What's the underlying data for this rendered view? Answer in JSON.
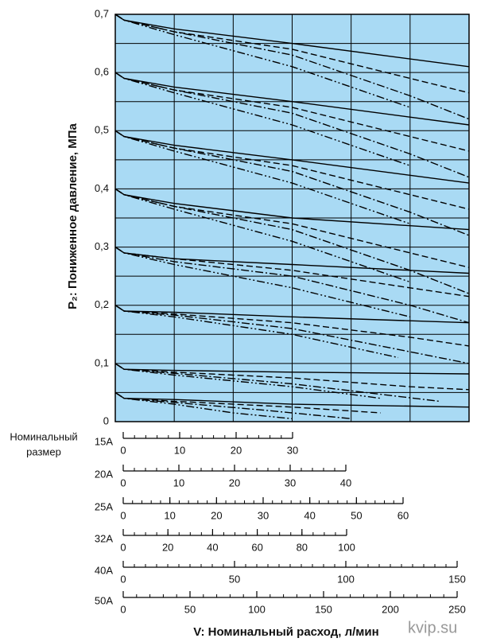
{
  "chart_data": {
    "type": "line",
    "ylabel": "P₂: Пониженное давление, МПа",
    "xlabel": "V: Номинальный расход, л/мин",
    "ylim": [
      0,
      0.7
    ],
    "yticks": [
      0,
      {
        "value": 0.1,
        "label": "0,1"
      },
      {
        "value": 0.2,
        "label": "0,2"
      },
      {
        "value": 0.3,
        "label": "0,3"
      },
      {
        "value": 0.4,
        "label": "0,4"
      },
      {
        "value": 0.5,
        "label": "0,5"
      },
      {
        "value": 0.6,
        "label": "0,6"
      },
      {
        "value": 0.7,
        "label": "0,7"
      }
    ],
    "minor_ygrid": [
      0.05,
      0.15,
      0.25,
      0.35,
      0.45,
      0.55,
      0.65
    ],
    "xlim": [
      0,
      6
    ],
    "xgrid": [
      0,
      1,
      2,
      3,
      4,
      5,
      6
    ],
    "grid": true,
    "background": "#a9daf4",
    "series": [
      {
        "color": "#000",
        "dash": "solid",
        "x": [
          0,
          0.15,
          1,
          3,
          6
        ],
        "values": [
          0.7,
          0.69,
          0.675,
          0.65,
          0.61
        ]
      },
      {
        "color": "#000",
        "dash": "dashed",
        "x": [
          0,
          0.15,
          1,
          3,
          5,
          6
        ],
        "values": [
          0.7,
          0.69,
          0.67,
          0.64,
          0.59,
          0.565
        ]
      },
      {
        "color": "#000",
        "dash": "dashdot",
        "x": [
          0,
          0.15,
          1,
          3,
          5,
          6
        ],
        "values": [
          0.7,
          0.69,
          0.67,
          0.63,
          0.56,
          0.52
        ]
      },
      {
        "color": "#000",
        "dash": "dashdotdot",
        "x": [
          0,
          0.15,
          1,
          3,
          5
        ],
        "values": [
          0.7,
          0.69,
          0.665,
          0.61,
          0.54
        ]
      },
      {
        "color": "#000",
        "dash": "solid",
        "x": [
          0,
          0.15,
          1,
          3,
          6
        ],
        "values": [
          0.6,
          0.59,
          0.575,
          0.55,
          0.51
        ]
      },
      {
        "color": "#000",
        "dash": "dashed",
        "x": [
          0,
          0.15,
          1,
          3,
          5,
          6
        ],
        "values": [
          0.6,
          0.59,
          0.57,
          0.54,
          0.49,
          0.465
        ]
      },
      {
        "color": "#000",
        "dash": "dashdot",
        "x": [
          0,
          0.15,
          1,
          3,
          5,
          6
        ],
        "values": [
          0.6,
          0.59,
          0.57,
          0.53,
          0.46,
          0.42
        ]
      },
      {
        "color": "#000",
        "dash": "dashdotdot",
        "x": [
          0,
          0.15,
          1,
          3,
          5
        ],
        "values": [
          0.6,
          0.59,
          0.565,
          0.51,
          0.44
        ]
      },
      {
        "color": "#000",
        "dash": "solid",
        "x": [
          0,
          0.15,
          1,
          3,
          6
        ],
        "values": [
          0.5,
          0.49,
          0.475,
          0.45,
          0.41
        ]
      },
      {
        "color": "#000",
        "dash": "dashed",
        "x": [
          0,
          0.15,
          1,
          3,
          5,
          6
        ],
        "values": [
          0.5,
          0.49,
          0.47,
          0.44,
          0.39,
          0.365
        ]
      },
      {
        "color": "#000",
        "dash": "dashdot",
        "x": [
          0,
          0.15,
          1,
          3,
          5,
          6
        ],
        "values": [
          0.5,
          0.49,
          0.47,
          0.43,
          0.36,
          0.32
        ]
      },
      {
        "color": "#000",
        "dash": "dashdotdot",
        "x": [
          0,
          0.15,
          1,
          3,
          5
        ],
        "values": [
          0.5,
          0.49,
          0.465,
          0.41,
          0.34
        ]
      },
      {
        "color": "#000",
        "dash": "solid",
        "x": [
          0,
          0.15,
          1,
          3,
          6
        ],
        "values": [
          0.4,
          0.39,
          0.375,
          0.35,
          0.33
        ]
      },
      {
        "color": "#000",
        "dash": "dashed",
        "x": [
          0,
          0.15,
          1,
          3,
          5,
          6
        ],
        "values": [
          0.4,
          0.39,
          0.37,
          0.34,
          0.29,
          0.265
        ]
      },
      {
        "color": "#000",
        "dash": "dashdot",
        "x": [
          0,
          0.15,
          1,
          3,
          5,
          6
        ],
        "values": [
          0.4,
          0.39,
          0.37,
          0.33,
          0.26,
          0.22
        ]
      },
      {
        "color": "#000",
        "dash": "dashdotdot",
        "x": [
          0,
          0.15,
          1,
          3,
          5
        ],
        "values": [
          0.4,
          0.39,
          0.365,
          0.31,
          0.24
        ]
      },
      {
        "color": "#000",
        "dash": "solid",
        "x": [
          0,
          0.15,
          1,
          3,
          6
        ],
        "values": [
          0.3,
          0.29,
          0.28,
          0.27,
          0.255
        ]
      },
      {
        "color": "#000",
        "dash": "dashed",
        "x": [
          0,
          0.15,
          1,
          3,
          5,
          6
        ],
        "values": [
          0.3,
          0.29,
          0.28,
          0.26,
          0.23,
          0.215
        ]
      },
      {
        "color": "#000",
        "dash": "dashdot",
        "x": [
          0,
          0.15,
          1,
          3,
          5,
          6
        ],
        "values": [
          0.3,
          0.29,
          0.275,
          0.25,
          0.2,
          0.17
        ]
      },
      {
        "color": "#000",
        "dash": "dashdotdot",
        "x": [
          0,
          0.15,
          1,
          3,
          5
        ],
        "values": [
          0.3,
          0.29,
          0.27,
          0.23,
          0.18
        ]
      },
      {
        "color": "#000",
        "dash": "solid",
        "x": [
          0,
          0.15,
          1,
          3,
          6
        ],
        "values": [
          0.2,
          0.19,
          0.188,
          0.18,
          0.17
        ]
      },
      {
        "color": "#000",
        "dash": "dashed",
        "x": [
          0,
          0.15,
          1,
          3,
          5,
          6
        ],
        "values": [
          0.2,
          0.19,
          0.185,
          0.17,
          0.145,
          0.13
        ]
      },
      {
        "color": "#000",
        "dash": "dashdot",
        "x": [
          0,
          0.15,
          1,
          3,
          5,
          6
        ],
        "values": [
          0.2,
          0.19,
          0.183,
          0.16,
          0.12,
          0.1
        ]
      },
      {
        "color": "#000",
        "dash": "dashdotdot",
        "x": [
          0,
          0.15,
          1,
          3,
          4.8
        ],
        "values": [
          0.2,
          0.19,
          0.18,
          0.15,
          0.11
        ]
      },
      {
        "color": "#000",
        "dash": "solid",
        "x": [
          0,
          0.15,
          1,
          3,
          6
        ],
        "values": [
          0.1,
          0.09,
          0.088,
          0.085,
          0.082
        ]
      },
      {
        "color": "#000",
        "dash": "dashed",
        "x": [
          0,
          0.15,
          1,
          3,
          5,
          6
        ],
        "values": [
          0.1,
          0.09,
          0.085,
          0.075,
          0.06,
          0.055
        ]
      },
      {
        "color": "#000",
        "dash": "dashdot",
        "x": [
          0,
          0.15,
          1,
          3,
          5.5
        ],
        "values": [
          0.1,
          0.09,
          0.083,
          0.065,
          0.035
        ]
      },
      {
        "color": "#000",
        "dash": "dashdotdot",
        "x": [
          0,
          0.15,
          1,
          3,
          4.5
        ],
        "values": [
          0.1,
          0.09,
          0.08,
          0.06,
          0.04
        ]
      },
      {
        "color": "#000",
        "dash": "solid",
        "x": [
          0,
          0.15,
          1,
          3,
          6
        ],
        "values": [
          0.05,
          0.04,
          0.038,
          0.03,
          0.025
        ]
      },
      {
        "color": "#000",
        "dash": "dashed",
        "x": [
          0,
          0.15,
          1,
          3,
          4.5
        ],
        "values": [
          0.05,
          0.04,
          0.035,
          0.025,
          0.015
        ]
      },
      {
        "color": "#000",
        "dash": "dashdot",
        "x": [
          0,
          0.15,
          1,
          2.5,
          4
        ],
        "values": [
          0.05,
          0.04,
          0.033,
          0.02,
          0.005
        ]
      },
      {
        "color": "#000",
        "dash": "dashdotdot",
        "x": [
          0,
          0.15,
          1,
          2,
          3
        ],
        "values": [
          0.05,
          0.04,
          0.03,
          0.015,
          0.005
        ]
      }
    ],
    "size_label_lines": [
      "Номинальный",
      "размер"
    ],
    "size_axes": [
      {
        "label": "15A",
        "xlim": [
          0,
          30
        ],
        "xticks": [
          0,
          10,
          20,
          30
        ],
        "minor_step": 2
      },
      {
        "label": "20A",
        "xlim": [
          0,
          40
        ],
        "xticks": [
          0,
          10,
          20,
          30,
          40
        ],
        "minor_step": 2
      },
      {
        "label": "25A",
        "xlim": [
          0,
          60
        ],
        "xticks": [
          0,
          10,
          20,
          30,
          40,
          50,
          60
        ],
        "minor_step": 2
      },
      {
        "label": "32A",
        "xlim": [
          0,
          100
        ],
        "xticks": [
          0,
          20,
          40,
          60,
          80,
          100
        ],
        "minor_step": 5
      },
      {
        "label": "40A",
        "xlim": [
          0,
          150
        ],
        "xticks": [
          0,
          50,
          100,
          150
        ],
        "minor_step": 5
      },
      {
        "label": "50A",
        "xlim": [
          0,
          250
        ],
        "xticks": [
          0,
          50,
          100,
          150,
          200,
          250
        ],
        "minor_step": 10
      }
    ],
    "watermark": "kvip.su"
  }
}
